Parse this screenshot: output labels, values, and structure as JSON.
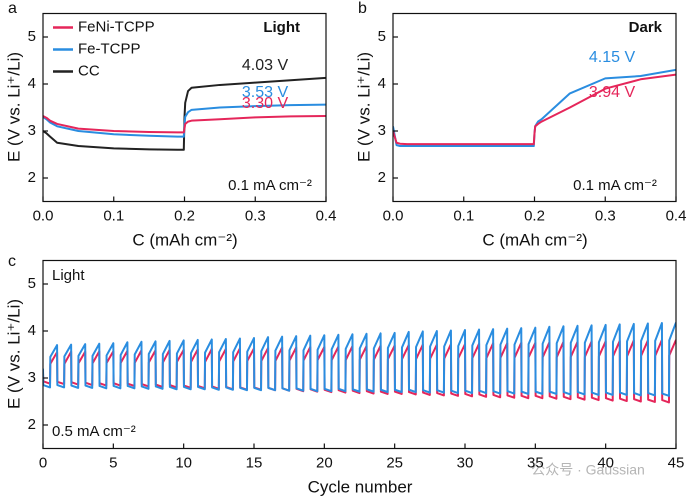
{
  "watermark": "公众号 · Gaussian",
  "chart_data": [
    {
      "type": "line",
      "panel": "a",
      "condition": "Light",
      "current": "0.1 mA cm⁻²",
      "xlabel": "C (mAh cm⁻²)",
      "ylabel": "E (V vs. Li⁺/Li)",
      "xlim": [
        0,
        0.4
      ],
      "ylim": [
        1.5,
        5.5
      ],
      "xticks": [
        {
          "value": 0,
          "label": "0.0"
        },
        0.1,
        0.2,
        0.3,
        0.4
      ],
      "yticks": [
        2,
        3,
        4,
        5
      ],
      "legend": "upper left",
      "x": [
        0,
        0.005,
        0.01,
        0.02,
        0.05,
        0.1,
        0.15,
        0.19,
        0.199,
        0.2,
        0.201,
        0.205,
        0.21,
        0.25,
        0.3,
        0.35,
        0.4
      ],
      "series": [
        {
          "name": "FeNi-TCPP",
          "color": "#e5265a",
          "annotation": "3.30 V",
          "values": [
            3.32,
            3.28,
            3.22,
            3.15,
            3.05,
            3.0,
            2.98,
            2.97,
            2.97,
            3.05,
            3.15,
            3.2,
            3.22,
            3.25,
            3.29,
            3.31,
            3.32
          ]
        },
        {
          "name": "Fe-TCPP",
          "color": "#2a8de0",
          "annotation": "3.53 V",
          "values": [
            3.3,
            3.25,
            3.18,
            3.1,
            3.0,
            2.93,
            2.9,
            2.88,
            2.88,
            3.1,
            3.3,
            3.4,
            3.45,
            3.5,
            3.53,
            3.55,
            3.56
          ]
        },
        {
          "name": "CC",
          "color": "#222222",
          "annotation": "4.03 V",
          "values": [
            3.0,
            2.95,
            2.88,
            2.75,
            2.68,
            2.63,
            2.61,
            2.6,
            2.6,
            3.3,
            3.6,
            3.85,
            3.92,
            3.98,
            4.03,
            4.08,
            4.13
          ]
        }
      ]
    },
    {
      "type": "line",
      "panel": "b",
      "condition": "Dark",
      "current": "0.1 mA cm⁻²",
      "xlabel": "C (mAh cm⁻²)",
      "ylabel": "E (V vs. Li⁺/Li)",
      "xlim": [
        0,
        0.4
      ],
      "ylim": [
        1.5,
        5.5
      ],
      "xticks": [
        {
          "value": 0,
          "label": "0.0"
        },
        0.1,
        0.2,
        0.3,
        0.4
      ],
      "yticks": [
        2,
        3,
        4,
        5
      ],
      "x": [
        0,
        0.005,
        0.01,
        0.02,
        0.05,
        0.1,
        0.15,
        0.19,
        0.199,
        0.2,
        0.201,
        0.205,
        0.21,
        0.25,
        0.3,
        0.35,
        0.4
      ],
      "series": [
        {
          "color": "#e5265a",
          "annotation": "3.94 V",
          "values": [
            3.0,
            2.75,
            2.73,
            2.72,
            2.72,
            2.72,
            2.72,
            2.72,
            2.72,
            2.95,
            3.1,
            3.15,
            3.2,
            3.5,
            3.9,
            4.1,
            4.2
          ]
        },
        {
          "color": "#2a8de0",
          "annotation": "4.15 V",
          "values": [
            3.1,
            2.7,
            2.68,
            2.68,
            2.68,
            2.68,
            2.68,
            2.68,
            2.68,
            2.95,
            3.1,
            3.2,
            3.25,
            3.8,
            4.12,
            4.17,
            4.3
          ]
        }
      ]
    },
    {
      "type": "line",
      "panel": "c",
      "condition": "Light",
      "current": "0.5 mA cm⁻²",
      "xlabel": "Cycle number",
      "ylabel": "E (V vs. Li⁺/Li)",
      "xlim": [
        0,
        45
      ],
      "ylim": [
        1.5,
        5.5
      ],
      "xticks": [
        0,
        5,
        10,
        15,
        20,
        25,
        30,
        35,
        40,
        45
      ],
      "yticks": [
        2,
        3,
        4,
        5
      ],
      "x": [
        0,
        0.02,
        0.5,
        0.52,
        1,
        1.02,
        1.5,
        1.52,
        2,
        2.02,
        2.5,
        2.52,
        3,
        3.02,
        3.5,
        3.52,
        4,
        4.02,
        4.5,
        4.52,
        5,
        5.02,
        5.5,
        5.52,
        6,
        6.02,
        6.5,
        6.52,
        7,
        7.02,
        7.5,
        7.52,
        8,
        8.02,
        8.5,
        8.52,
        9,
        9.02,
        9.5,
        9.52,
        10,
        10.02,
        10.5,
        10.52,
        11,
        11.02,
        11.5,
        11.52,
        12,
        12.02,
        12.5,
        12.52,
        13,
        13.02,
        13.5,
        13.52,
        14,
        14.02,
        14.5,
        14.52,
        15,
        15.02,
        15.5,
        15.52,
        16,
        16.02,
        16.5,
        16.52,
        17,
        17.02,
        17.5,
        17.52,
        18,
        18.02,
        18.5,
        18.52,
        19,
        19.02,
        19.5,
        19.52,
        20,
        20.02,
        20.5,
        20.52,
        21,
        21.02,
        21.5,
        21.52,
        22,
        22.02,
        22.5,
        22.52,
        23,
        23.02,
        23.5,
        23.52,
        24,
        24.02,
        24.5,
        24.52,
        25,
        25.02,
        25.5,
        25.52,
        26,
        26.02,
        26.5,
        26.52,
        27,
        27.02,
        27.5,
        27.52,
        28,
        28.02,
        28.5,
        28.52,
        29,
        29.02,
        29.5,
        29.52,
        30,
        30.02,
        30.5,
        30.52,
        31,
        31.02,
        31.5,
        31.52,
        32,
        32.02,
        32.5,
        32.52,
        33,
        33.02,
        33.5,
        33.52,
        34,
        34.02,
        34.5,
        34.52,
        35,
        35.02,
        35.5,
        35.52,
        36,
        36.02,
        36.5,
        36.52,
        37,
        37.02,
        37.5,
        37.52,
        38,
        38.02,
        38.5,
        38.52,
        39,
        39.02,
        39.5,
        39.52,
        40,
        40.02,
        40.5,
        40.52,
        41,
        41.02,
        41.5,
        41.52,
        42,
        42.02,
        42.5,
        42.52,
        43,
        43.02,
        43.5,
        43.52,
        44,
        44.02,
        44.5,
        44.52,
        45
      ],
      "series": [
        {
          "color": "#2a8de0",
          "values": [
            3.2,
            2.85,
            2.8,
            3.45,
            3.7,
            2.85,
            2.8,
            3.46,
            3.71,
            2.84,
            2.79,
            3.47,
            3.72,
            2.84,
            2.79,
            3.47,
            3.73,
            2.83,
            2.78,
            3.48,
            3.74,
            2.83,
            2.78,
            3.49,
            3.76,
            2.83,
            2.78,
            3.5,
            3.77,
            2.82,
            2.77,
            3.51,
            3.78,
            2.82,
            2.77,
            3.51,
            3.79,
            2.81,
            2.76,
            3.52,
            3.8,
            2.81,
            2.76,
            3.53,
            3.81,
            2.81,
            2.76,
            3.54,
            3.82,
            2.8,
            2.75,
            3.55,
            3.83,
            2.8,
            2.75,
            3.55,
            3.84,
            2.79,
            2.74,
            3.56,
            3.85,
            2.79,
            2.74,
            3.57,
            3.87,
            2.79,
            2.74,
            3.58,
            3.88,
            2.78,
            2.73,
            3.59,
            3.89,
            2.78,
            2.73,
            3.59,
            3.9,
            2.77,
            2.72,
            3.6,
            3.91,
            2.77,
            2.72,
            3.61,
            3.92,
            2.77,
            2.72,
            3.62,
            3.93,
            2.76,
            2.71,
            3.63,
            3.94,
            2.76,
            2.71,
            3.63,
            3.95,
            2.75,
            2.7,
            3.64,
            3.96,
            2.75,
            2.7,
            3.65,
            3.98,
            2.75,
            2.7,
            3.66,
            3.99,
            2.74,
            2.69,
            3.67,
            4.0,
            2.74,
            2.69,
            3.67,
            4.01,
            2.73,
            2.68,
            3.68,
            4.02,
            2.73,
            2.68,
            3.69,
            4.03,
            2.73,
            2.68,
            3.7,
            4.04,
            2.72,
            2.67,
            3.71,
            4.05,
            2.72,
            2.67,
            3.71,
            4.06,
            2.71,
            2.66,
            3.72,
            4.07,
            2.71,
            2.66,
            3.73,
            4.09,
            2.71,
            2.66,
            3.74,
            4.1,
            2.7,
            2.65,
            3.75,
            4.11,
            2.7,
            2.65,
            3.75,
            4.12,
            2.69,
            2.64,
            3.76,
            4.13,
            2.69,
            2.64,
            3.77,
            4.14,
            2.69,
            2.64,
            3.78,
            4.15,
            2.68,
            2.63,
            3.79,
            4.16,
            2.68,
            2.63,
            3.79,
            4.17,
            2.67,
            2.62,
            3.8,
            4.18
          ]
        },
        {
          "color": "#e5265a",
          "values": [
            3.1,
            2.93,
            2.88,
            3.3,
            3.55,
            2.92,
            2.87,
            3.3,
            3.56,
            2.91,
            2.86,
            3.31,
            3.56,
            2.9,
            2.85,
            3.31,
            3.57,
            2.89,
            2.84,
            3.32,
            3.57,
            2.89,
            2.84,
            3.32,
            3.58,
            2.88,
            2.83,
            3.32,
            3.59,
            2.87,
            2.82,
            3.33,
            3.59,
            2.86,
            2.81,
            3.33,
            3.6,
            2.85,
            2.8,
            3.34,
            3.6,
            2.84,
            2.79,
            3.34,
            3.61,
            2.83,
            2.78,
            3.34,
            3.62,
            2.82,
            2.77,
            3.35,
            3.62,
            2.81,
            2.76,
            3.35,
            3.63,
            2.8,
            2.75,
            3.36,
            3.63,
            2.8,
            2.75,
            3.36,
            3.64,
            2.79,
            2.74,
            3.36,
            3.65,
            2.78,
            2.73,
            3.37,
            3.65,
            2.77,
            2.72,
            3.37,
            3.66,
            2.76,
            2.71,
            3.38,
            3.66,
            2.75,
            2.7,
            3.38,
            3.67,
            2.74,
            2.69,
            3.38,
            3.68,
            2.73,
            2.68,
            3.39,
            3.68,
            2.72,
            2.67,
            3.39,
            3.69,
            2.71,
            2.66,
            3.4,
            3.69,
            2.71,
            2.66,
            3.4,
            3.7,
            2.7,
            2.65,
            3.4,
            3.71,
            2.69,
            2.64,
            3.41,
            3.71,
            2.68,
            2.63,
            3.41,
            3.72,
            2.67,
            2.62,
            3.42,
            3.72,
            2.66,
            2.61,
            3.42,
            3.73,
            2.65,
            2.6,
            3.42,
            3.74,
            2.64,
            2.59,
            3.43,
            3.74,
            2.63,
            2.58,
            3.43,
            3.75,
            2.62,
            2.57,
            3.44,
            3.75,
            2.62,
            2.57,
            3.44,
            3.76,
            2.61,
            2.56,
            3.44,
            3.77,
            2.6,
            2.55,
            3.45,
            3.77,
            2.59,
            2.54,
            3.45,
            3.78,
            2.58,
            2.53,
            3.46,
            3.78,
            2.57,
            2.52,
            3.46,
            3.79,
            2.56,
            2.51,
            3.46,
            3.8,
            2.55,
            2.5,
            3.47,
            3.8,
            2.54,
            2.49,
            3.47,
            3.81,
            2.53,
            2.48,
            3.48,
            3.81
          ]
        }
      ]
    }
  ]
}
